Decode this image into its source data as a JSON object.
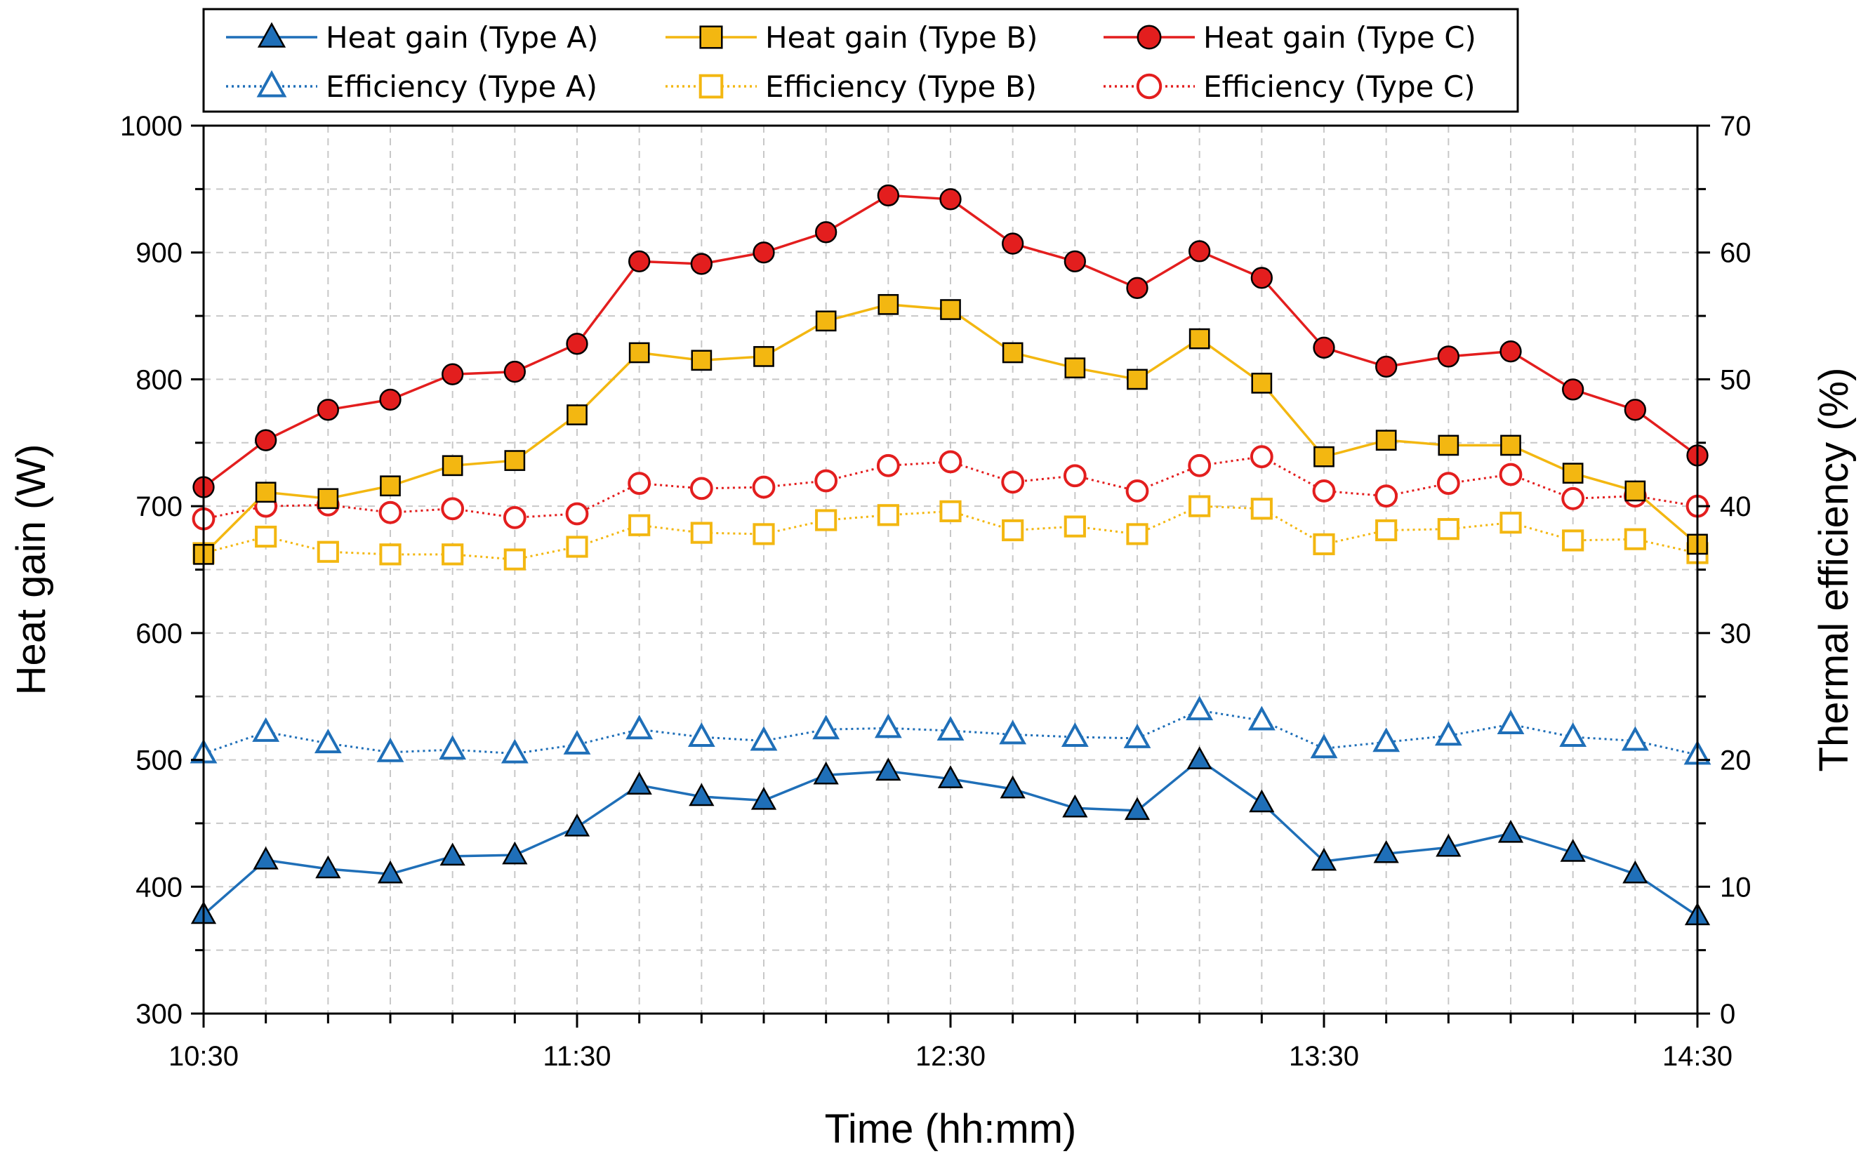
{
  "chart_data": {
    "type": "line",
    "x": [
      "10:30",
      "10:40",
      "10:50",
      "11:00",
      "11:10",
      "11:20",
      "11:30",
      "11:40",
      "11:50",
      "12:00",
      "12:10",
      "12:20",
      "12:30",
      "12:40",
      "12:50",
      "13:00",
      "13:10",
      "13:20",
      "13:30",
      "13:40",
      "13:50",
      "14:00",
      "14:10",
      "14:20",
      "14:30"
    ],
    "xlabel": "Time (hh:mm)",
    "ylabel": "Heat gain (W)",
    "y2label": "Thermal efficiency (%)",
    "ylim": [
      300,
      1000
    ],
    "y2lim": [
      0,
      70
    ],
    "xticks": [
      "10:30",
      "11:30",
      "12:30",
      "13:30",
      "14:30"
    ],
    "yticks": [
      300,
      400,
      500,
      600,
      700,
      800,
      900,
      1000
    ],
    "y2ticks": [
      0,
      10,
      20,
      30,
      40,
      50,
      60,
      70
    ],
    "grid": true,
    "legend_position": "top",
    "series": [
      {
        "name": "Heat gain (Type A)",
        "axis": "left",
        "color": "#1f6fb8",
        "marker": "triangle",
        "filled": true,
        "line": "solid",
        "values": [
          378,
          421,
          414,
          410,
          424,
          425,
          447,
          480,
          471,
          468,
          488,
          491,
          485,
          477,
          462,
          460,
          500,
          466,
          420,
          426,
          431,
          442,
          427,
          410,
          377
        ]
      },
      {
        "name": "Heat gain (Type B)",
        "axis": "left",
        "color": "#f3b711",
        "marker": "square",
        "filled": true,
        "line": "solid",
        "values": [
          662,
          711,
          706,
          716,
          732,
          736,
          772,
          821,
          815,
          818,
          846,
          859,
          855,
          821,
          809,
          800,
          832,
          797,
          739,
          752,
          748,
          748,
          726,
          712,
          670
        ]
      },
      {
        "name": "Heat gain (Type C)",
        "axis": "left",
        "color": "#e31e1e",
        "marker": "circle",
        "filled": true,
        "line": "solid",
        "values": [
          715,
          752,
          776,
          784,
          804,
          806,
          828,
          893,
          891,
          900,
          916,
          945,
          942,
          907,
          893,
          872,
          901,
          880,
          825,
          810,
          818,
          822,
          792,
          776,
          740
        ]
      },
      {
        "name": "Efficiency (Type A)",
        "axis": "right",
        "color": "#1f6fb8",
        "marker": "triangle",
        "filled": false,
        "line": "dotted",
        "values": [
          20.5,
          22.2,
          21.3,
          20.6,
          20.8,
          20.5,
          21.2,
          22.4,
          21.8,
          21.5,
          22.4,
          22.5,
          22.3,
          22.0,
          21.8,
          21.7,
          23.9,
          23.1,
          20.9,
          21.4,
          21.9,
          22.8,
          21.8,
          21.5,
          20.4
        ]
      },
      {
        "name": "Efficiency (Type B)",
        "axis": "right",
        "color": "#f3b711",
        "marker": "square",
        "filled": false,
        "line": "dotted",
        "values": [
          36.3,
          37.6,
          36.4,
          36.2,
          36.2,
          35.8,
          36.8,
          38.5,
          37.9,
          37.8,
          38.9,
          39.3,
          39.6,
          38.1,
          38.4,
          37.8,
          40.0,
          39.8,
          37.0,
          38.1,
          38.2,
          38.7,
          37.3,
          37.4,
          36.3
        ]
      },
      {
        "name": "Efficiency (Type C)",
        "axis": "right",
        "color": "#e31e1e",
        "marker": "circle",
        "filled": false,
        "line": "dotted",
        "values": [
          39.0,
          40.0,
          40.1,
          39.5,
          39.8,
          39.1,
          39.4,
          41.8,
          41.4,
          41.5,
          42.0,
          43.2,
          43.5,
          41.9,
          42.4,
          41.2,
          43.2,
          43.9,
          41.2,
          40.8,
          41.8,
          42.5,
          40.6,
          40.8,
          40.0
        ]
      }
    ]
  }
}
